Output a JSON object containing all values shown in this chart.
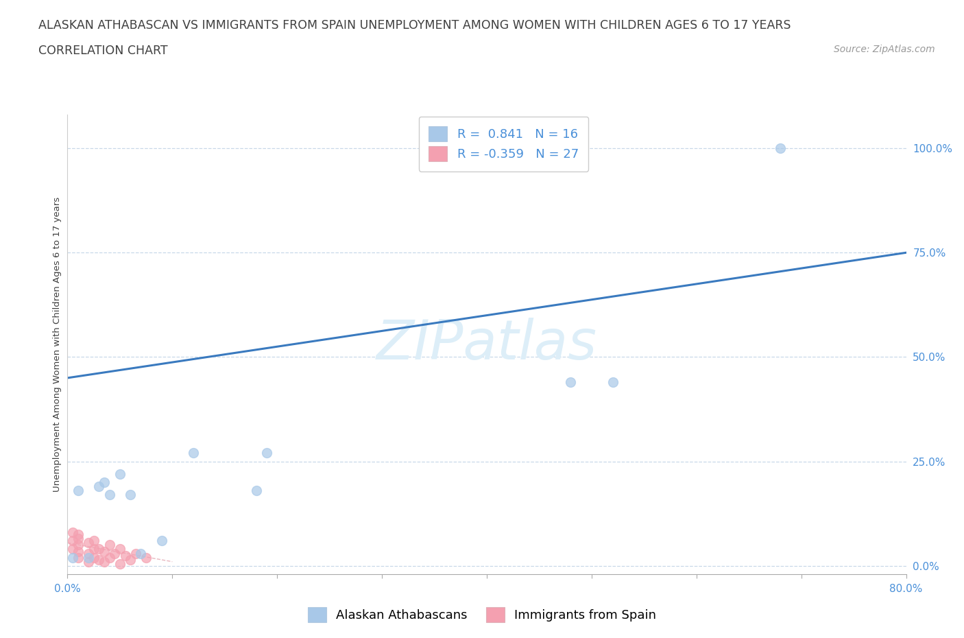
{
  "title_line1": "ALASKAN ATHABASCAN VS IMMIGRANTS FROM SPAIN UNEMPLOYMENT AMONG WOMEN WITH CHILDREN AGES 6 TO 17 YEARS",
  "title_line2": "CORRELATION CHART",
  "source_text": "Source: ZipAtlas.com",
  "ylabel_label": "Unemployment Among Women with Children Ages 6 to 17 years",
  "ytick_vals": [
    0.0,
    0.25,
    0.5,
    0.75,
    1.0
  ],
  "ytick_labels": [
    "0.0%",
    "25.0%",
    "50.0%",
    "75.0%",
    "100.0%"
  ],
  "xlim": [
    0.0,
    0.8
  ],
  "ylim": [
    -0.02,
    1.08
  ],
  "blue_R": 0.841,
  "blue_N": 16,
  "pink_R": -0.359,
  "pink_N": 27,
  "blue_color": "#a8c8e8",
  "pink_color": "#f4a0b0",
  "line_color": "#3a7abf",
  "pink_line_color": "#d07080",
  "watermark_text": "ZIPatlas",
  "watermark_color": "#ddeef8",
  "blue_points_x": [
    0.005,
    0.01,
    0.02,
    0.03,
    0.035,
    0.04,
    0.05,
    0.06,
    0.07,
    0.09,
    0.12,
    0.18,
    0.19,
    0.48,
    0.52,
    0.68
  ],
  "blue_points_y": [
    0.02,
    0.18,
    0.02,
    0.19,
    0.2,
    0.17,
    0.22,
    0.17,
    0.03,
    0.06,
    0.27,
    0.18,
    0.27,
    0.44,
    0.44,
    1.0
  ],
  "pink_points_x": [
    0.005,
    0.005,
    0.005,
    0.01,
    0.01,
    0.01,
    0.01,
    0.01,
    0.02,
    0.02,
    0.02,
    0.025,
    0.025,
    0.025,
    0.03,
    0.03,
    0.035,
    0.035,
    0.04,
    0.04,
    0.045,
    0.05,
    0.05,
    0.055,
    0.06,
    0.065,
    0.075
  ],
  "pink_points_y": [
    0.04,
    0.06,
    0.08,
    0.02,
    0.035,
    0.05,
    0.065,
    0.075,
    0.01,
    0.03,
    0.055,
    0.02,
    0.04,
    0.06,
    0.015,
    0.04,
    0.01,
    0.035,
    0.02,
    0.05,
    0.03,
    0.005,
    0.04,
    0.025,
    0.015,
    0.03,
    0.02
  ],
  "line_x_start": 0.0,
  "line_x_end": 0.8,
  "line_y_start": 0.45,
  "line_y_end": 0.75,
  "pink_line_x_start": 0.0,
  "pink_line_x_end": 0.1,
  "pink_line_y_start": 0.055,
  "pink_line_y_end": 0.01,
  "marker_size": 100,
  "grid_color": "#c8d8e8",
  "background_color": "#ffffff",
  "title_color": "#404040",
  "tick_color": "#4a90d9",
  "title_fontsize": 12.5,
  "axis_label_fontsize": 9.5,
  "tick_fontsize": 11,
  "legend_fontsize": 13,
  "source_fontsize": 10
}
